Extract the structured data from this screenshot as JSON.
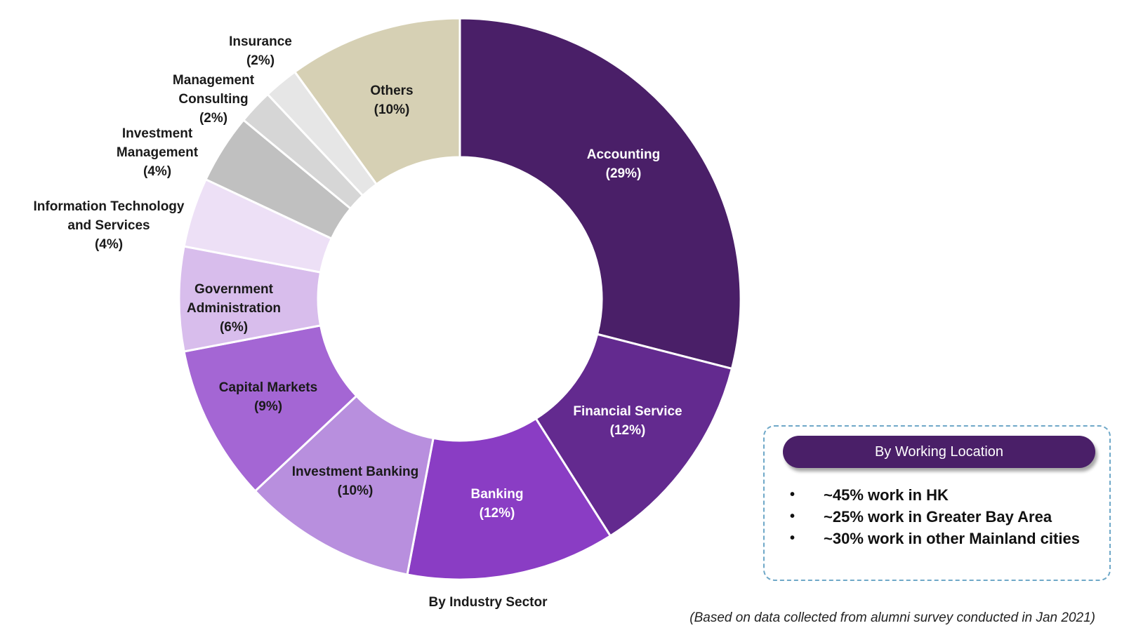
{
  "chart_data": {
    "type": "pie",
    "title": "By Industry Sector",
    "slices": [
      {
        "label": [
          "Accounting"
        ],
        "pct": "(29%)",
        "value": 29,
        "color": "#4a1f68",
        "text_color": "#ffffff"
      },
      {
        "label": [
          "Financial Service"
        ],
        "pct": "(12%)",
        "value": 12,
        "color": "#632a8f",
        "text_color": "#ffffff"
      },
      {
        "label": [
          "Banking"
        ],
        "pct": "(12%)",
        "value": 12,
        "color": "#8a3dc4",
        "text_color": "#ffffff"
      },
      {
        "label": [
          "Investment Banking"
        ],
        "pct": "(10%)",
        "value": 10,
        "color": "#b88fde",
        "text_color": "#1a1a1a"
      },
      {
        "label": [
          "Capital Markets"
        ],
        "pct": "(9%)",
        "value": 9,
        "color": "#a466d4",
        "text_color": "#1a1a1a"
      },
      {
        "label": [
          "Government",
          "Administration"
        ],
        "pct": "(6%)",
        "value": 6,
        "color": "#d8bdec",
        "text_color": "#1a1a1a"
      },
      {
        "label": [
          "Information Technology",
          "and Services"
        ],
        "pct": "(4%)",
        "value": 4,
        "color": "#ede0f6",
        "text_color": "#1a1a1a"
      },
      {
        "label": [
          "Investment",
          "Management"
        ],
        "pct": "(4%)",
        "value": 4,
        "color": "#c0c0c0",
        "text_color": "#1a1a1a"
      },
      {
        "label": [
          "Management",
          "Consulting"
        ],
        "pct": "(2%)",
        "value": 2,
        "color": "#d6d6d6",
        "text_color": "#1a1a1a"
      },
      {
        "label": [
          "Insurance"
        ],
        "pct": "(2%)",
        "value": 2,
        "color": "#e6e6e6",
        "text_color": "#1a1a1a"
      },
      {
        "label": [
          "Others"
        ],
        "pct": "(10%)",
        "value": 10,
        "color": "#d6d0b4",
        "text_color": "#1a1a1a"
      }
    ]
  },
  "location": {
    "title": "By Working Location",
    "bullet": "•",
    "items": [
      "~45% work in HK",
      "~25% work in Greater Bay Area",
      "~30% work in other Mainland cities"
    ]
  },
  "footnote": "(Based on data collected from alumni survey conducted in Jan 2021)"
}
